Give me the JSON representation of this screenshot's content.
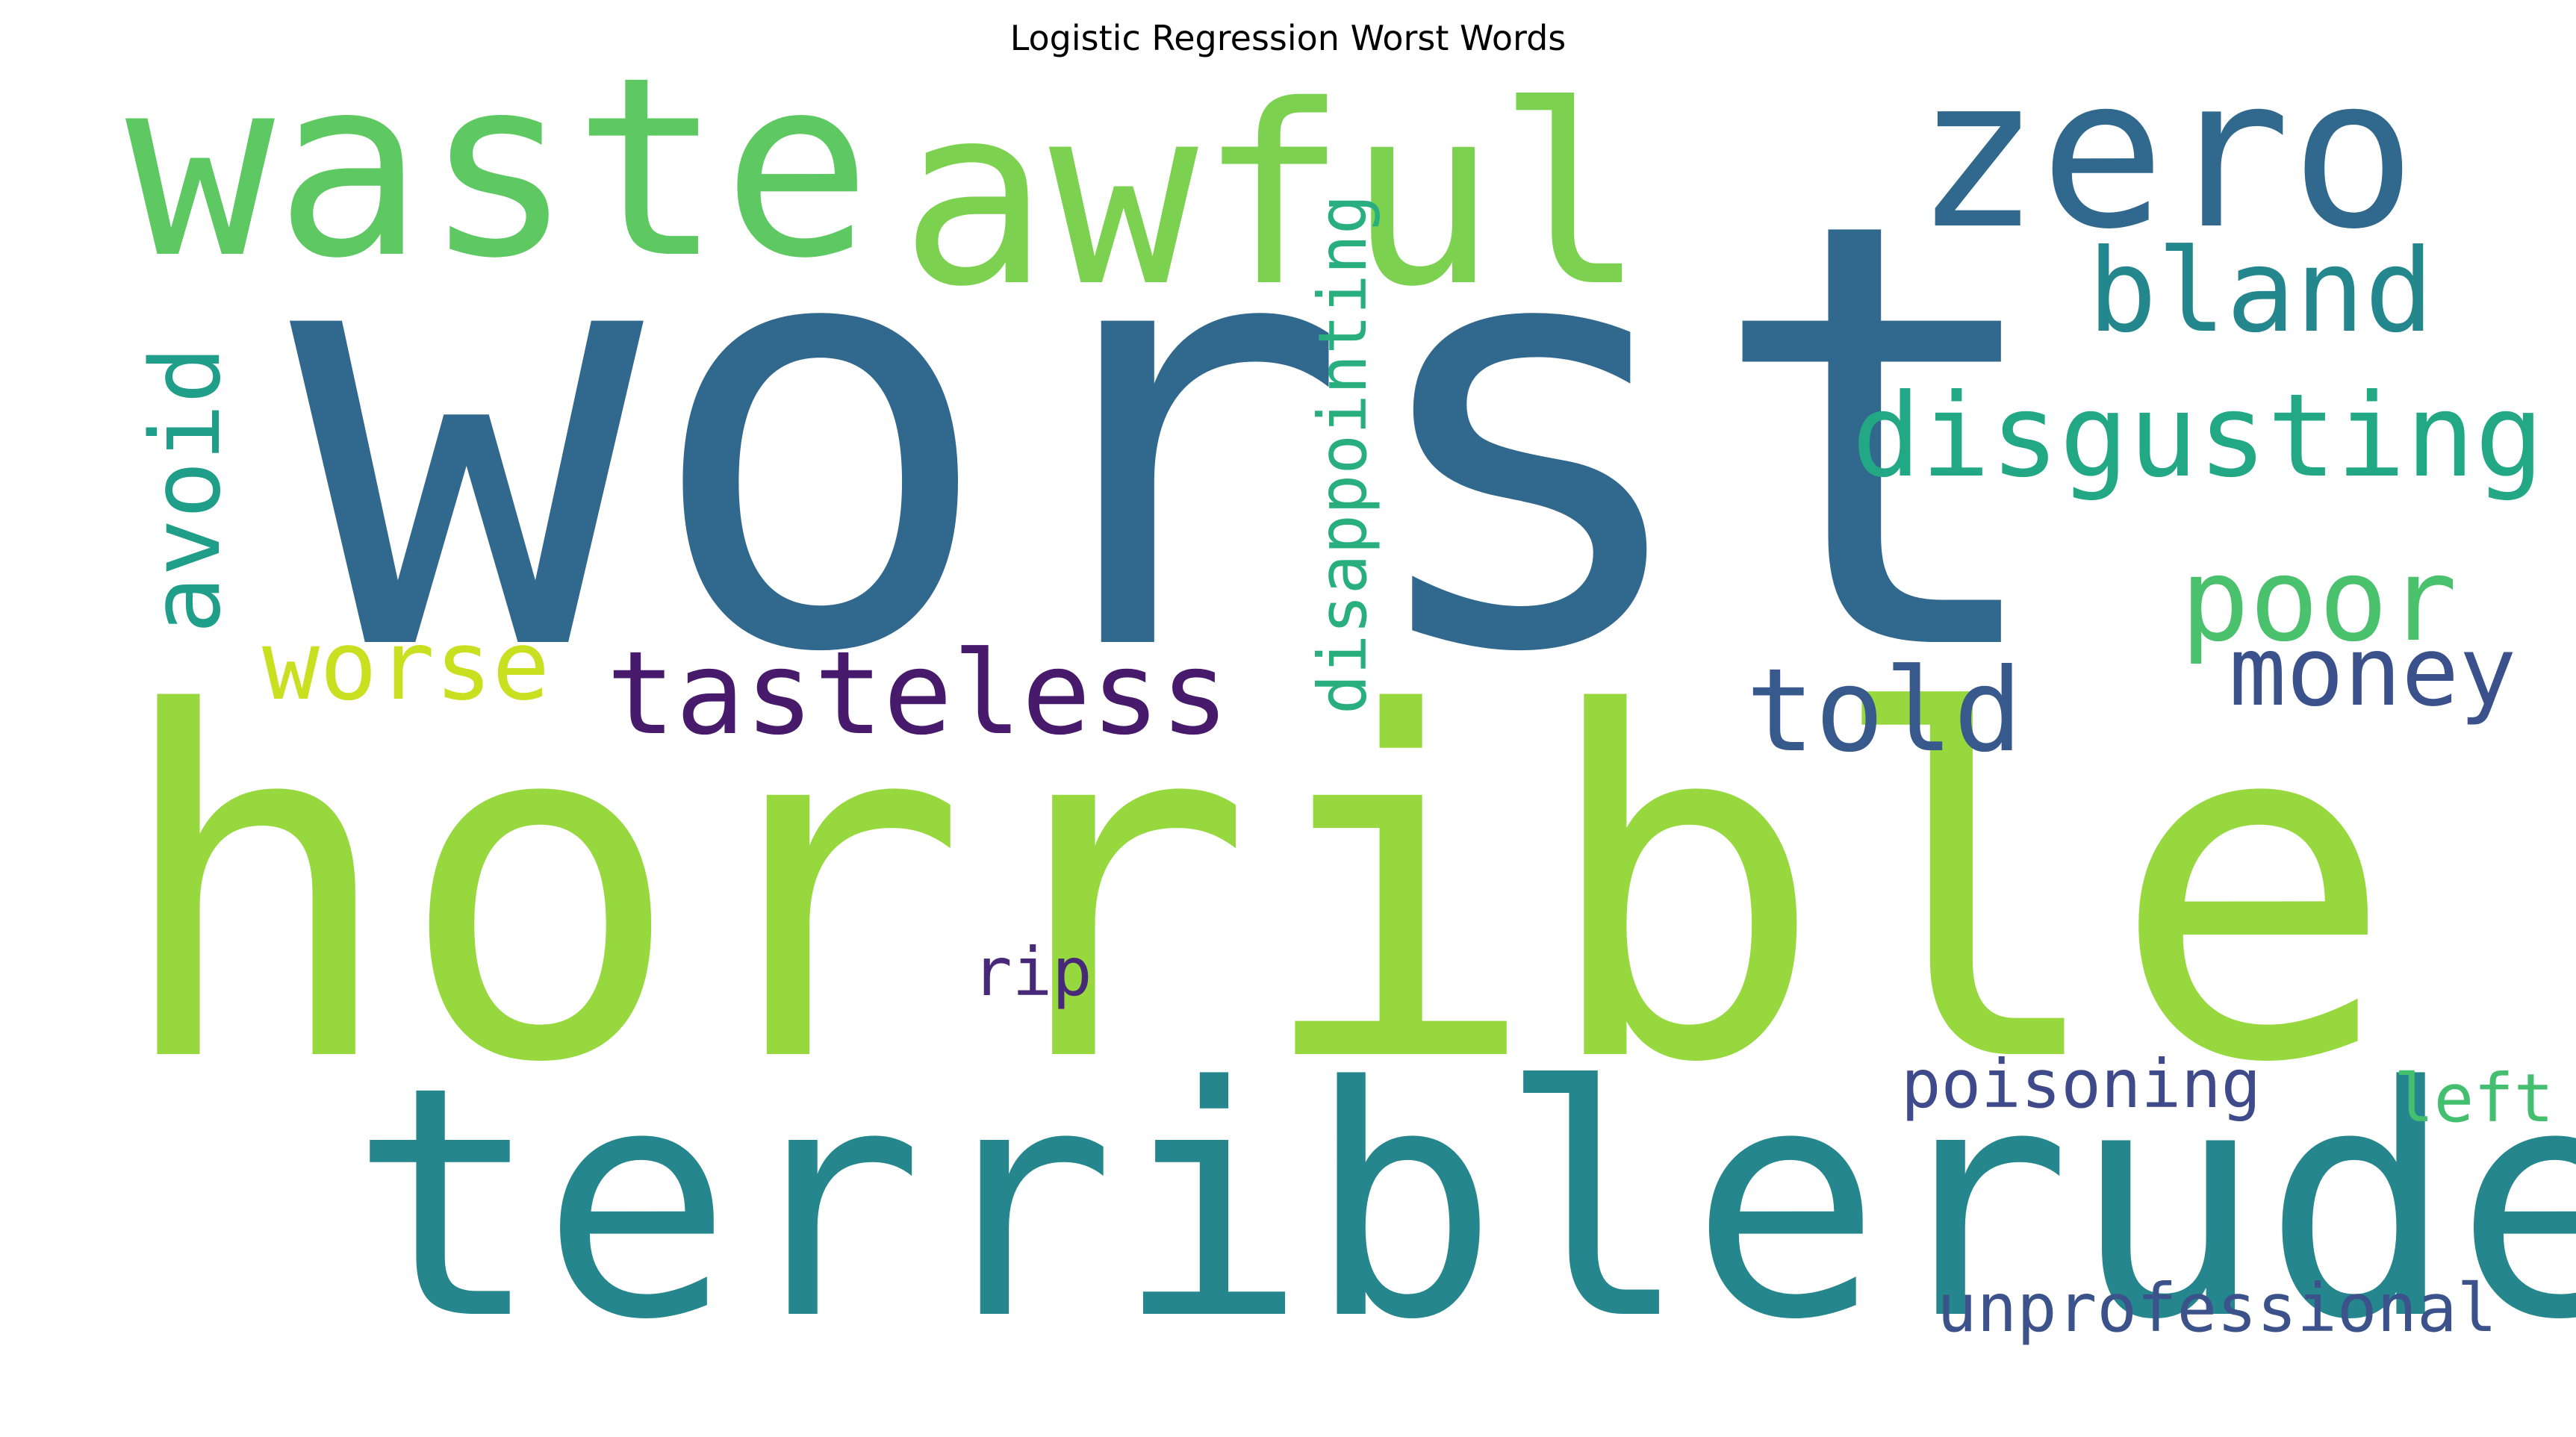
{
  "chart_data": {
    "type": "wordcloud",
    "title": "Logistic Regression Worst Words",
    "words": [
      {
        "text": "worst",
        "color": "#31688e"
      },
      {
        "text": "horrible",
        "color": "#97d83f"
      },
      {
        "text": "terrible",
        "color": "#25878d"
      },
      {
        "text": "rude",
        "color": "#25878d"
      },
      {
        "text": "waste",
        "color": "#5ec962"
      },
      {
        "text": "awful",
        "color": "#7cd250"
      },
      {
        "text": "zero",
        "color": "#31688e"
      },
      {
        "text": "bland",
        "color": "#24878e"
      },
      {
        "text": "disgusting",
        "color": "#22a884"
      },
      {
        "text": "poor",
        "color": "#4ac16d"
      },
      {
        "text": "money",
        "color": "#3b518b"
      },
      {
        "text": "told",
        "color": "#38598c"
      },
      {
        "text": "tasteless",
        "color": "#481a6c"
      },
      {
        "text": "worse",
        "color": "#c8e020"
      },
      {
        "text": "avoid",
        "color": "#1f9e89"
      },
      {
        "text": "disappointing",
        "color": "#29af7f"
      },
      {
        "text": "rip",
        "color": "#482878"
      },
      {
        "text": "poisoning",
        "color": "#3e4a89"
      },
      {
        "text": "left",
        "color": "#44bf70"
      },
      {
        "text": "unprofessional",
        "color": "#3b528b"
      }
    ]
  }
}
